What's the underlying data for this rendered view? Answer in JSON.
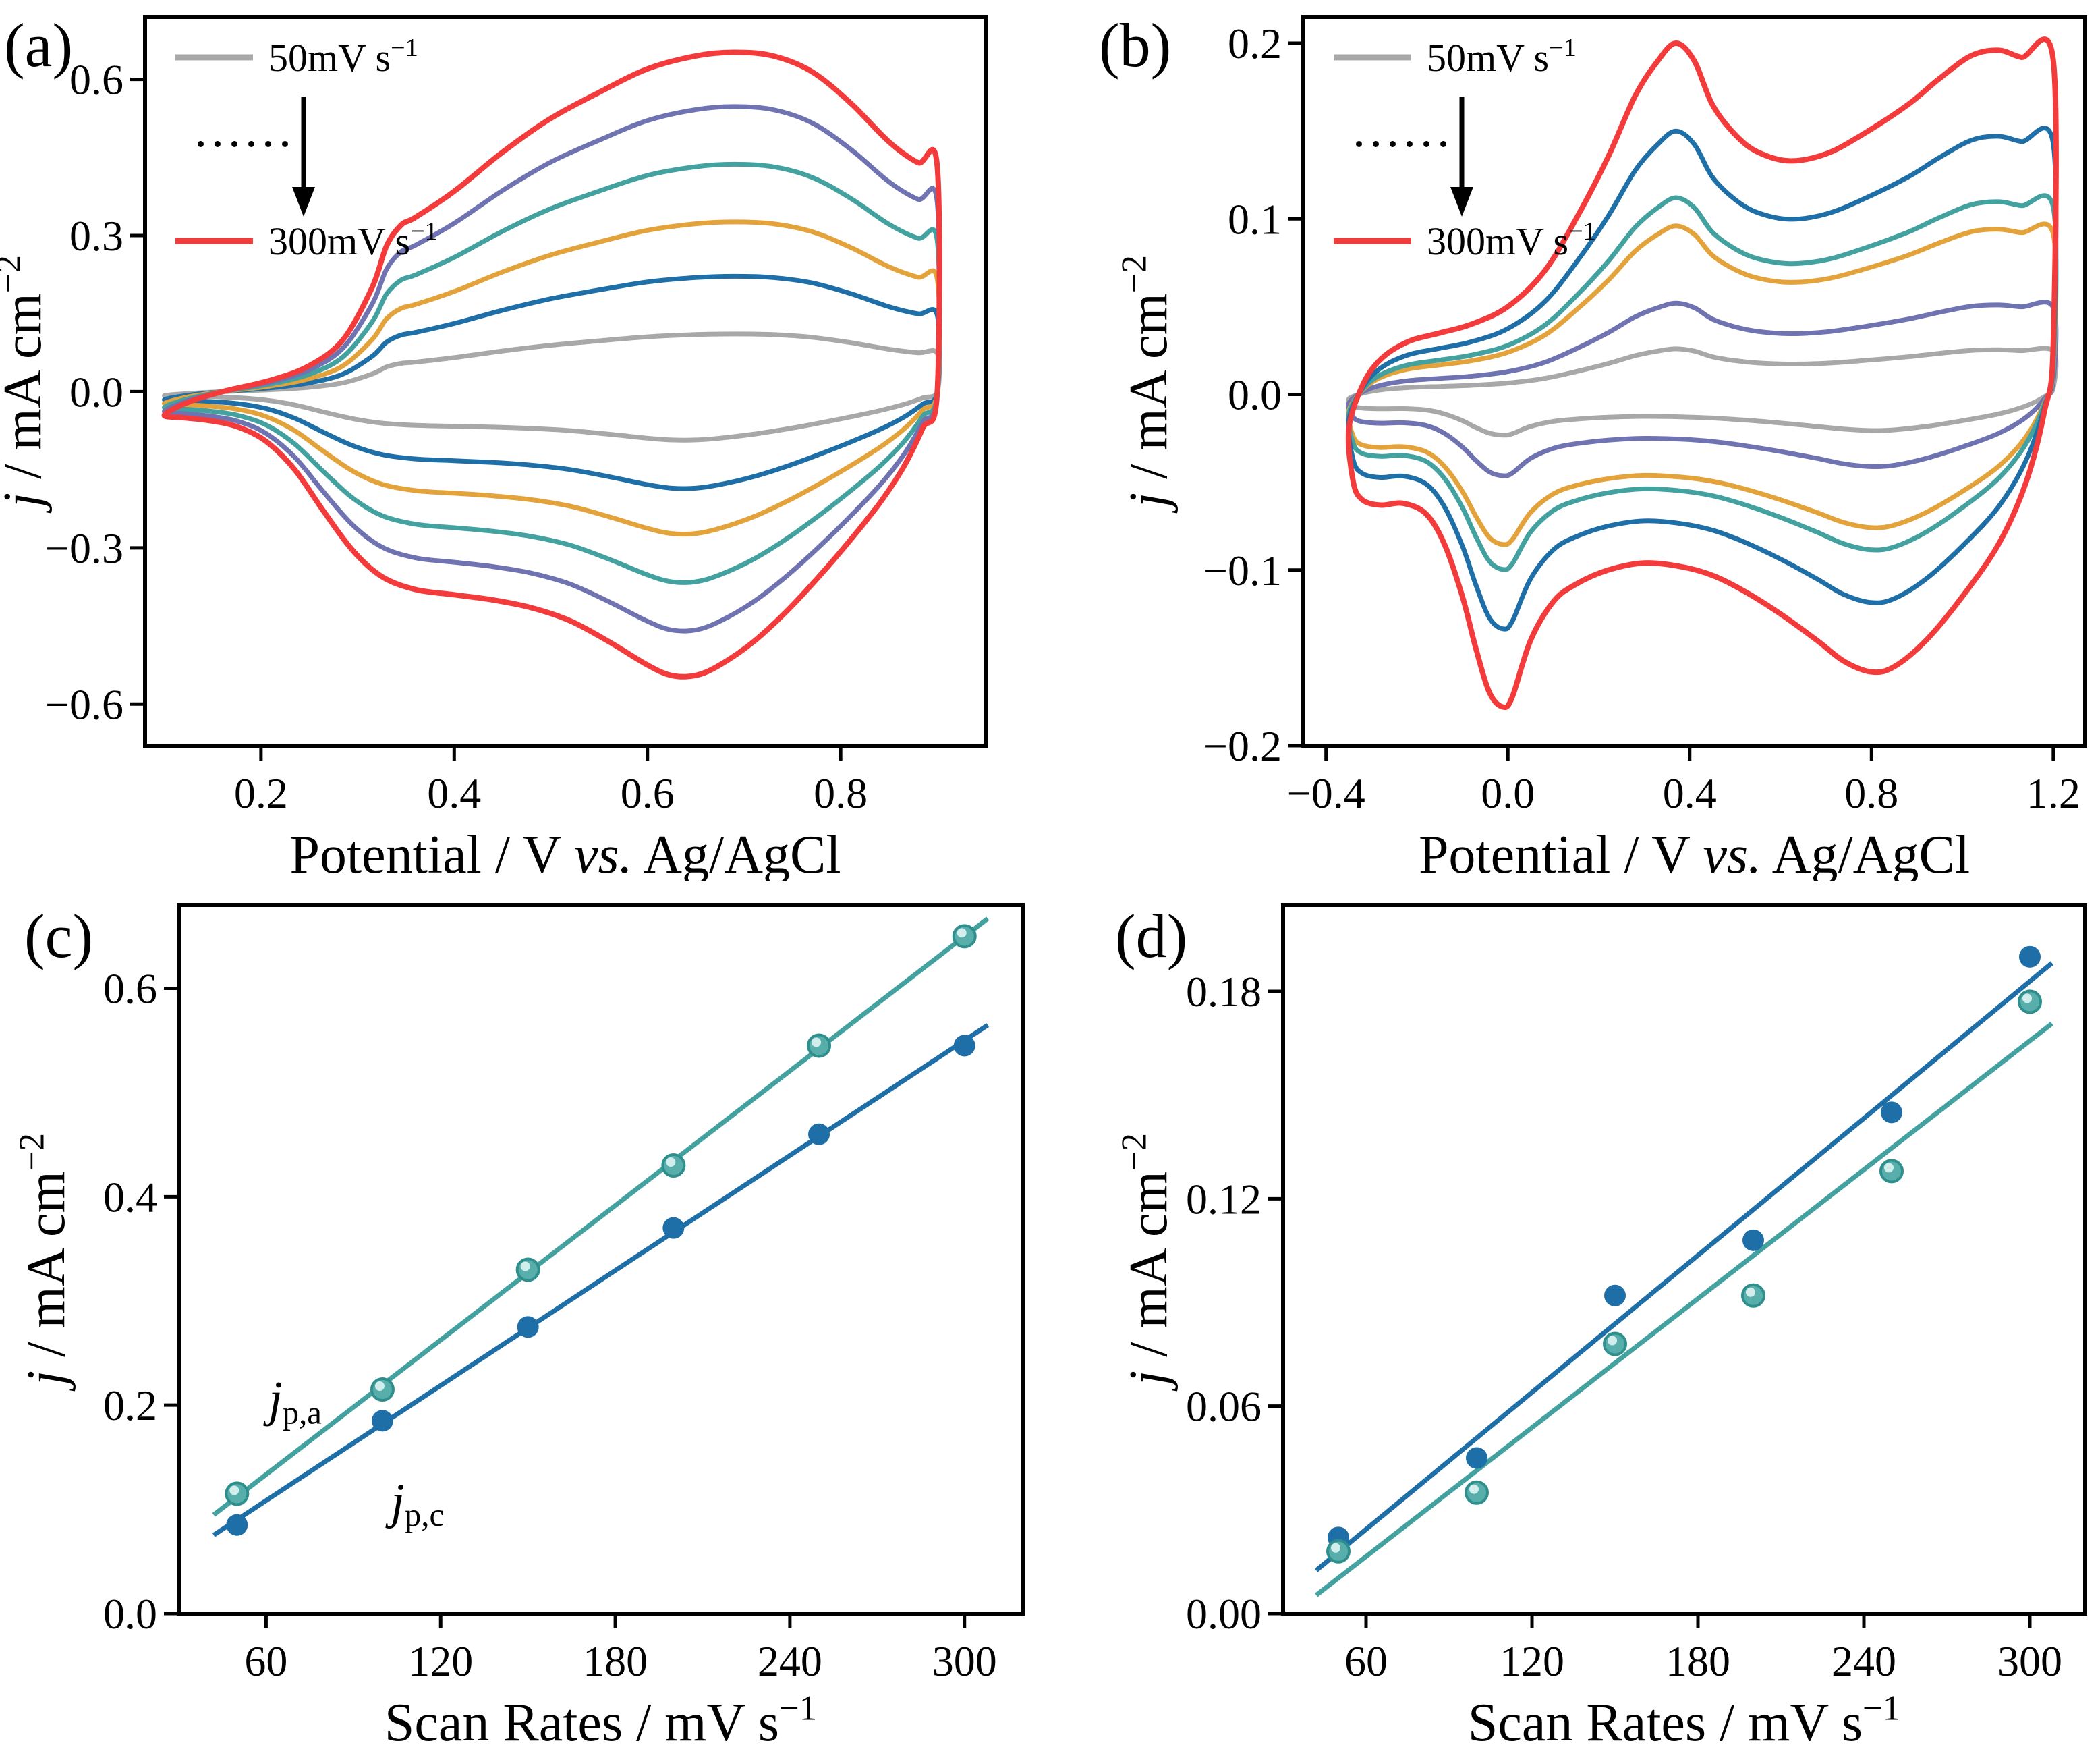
{
  "figure": {
    "background": "#ffffff"
  },
  "colors": {
    "gray": "#a8a8a8",
    "blue": "#1e6ea7",
    "orange": "#e3a23a",
    "teal": "#43a2a0",
    "purple": "#7073b1",
    "red": "#f43b3b",
    "black": "#000000"
  },
  "chart_data": [
    {
      "id": "a",
      "letter": "(a)",
      "type": "cv",
      "xlim": [
        0.08,
        0.95
      ],
      "ylim": [
        -0.68,
        0.72
      ],
      "xticks": [
        {
          "v": 0.2,
          "l": "0.2"
        },
        {
          "v": 0.4,
          "l": "0.4"
        },
        {
          "v": 0.6,
          "l": "0.6"
        },
        {
          "v": 0.8,
          "l": "0.8"
        }
      ],
      "yticks": [
        {
          "v": -0.6,
          "l": "−0.6"
        },
        {
          "v": -0.3,
          "l": "−0.3"
        },
        {
          "v": 0,
          "l": "0.0"
        },
        {
          "v": 0.3,
          "l": "0.3"
        },
        {
          "v": 0.6,
          "l": "0.6"
        }
      ],
      "xlabel": [
        {
          "t": "Potential / V "
        },
        {
          "t": "vs.",
          "i": 1
        },
        {
          "t": " Ag/AgCl"
        }
      ],
      "ylabel": [
        {
          "t": "j",
          "i": 1
        },
        {
          "t": " / mA cm"
        },
        {
          "t": "−2",
          "sup": 1
        }
      ],
      "legend": {
        "first": [
          {
            "t": "50mV s"
          },
          {
            "t": "−1",
            "sup": 1
          }
        ],
        "last": [
          {
            "t": "300mV s"
          },
          {
            "t": "−1",
            "sup": 1
          }
        ],
        "dots": "......",
        "first_color": "#a8a8a8",
        "last_color": "#f43b3b"
      },
      "base_top": [
        [
          0.1,
          -0.045
        ],
        [
          0.125,
          -0.02
        ],
        [
          0.16,
          0.0
        ],
        [
          0.21,
          0.022
        ],
        [
          0.25,
          0.05
        ],
        [
          0.285,
          0.1
        ],
        [
          0.315,
          0.2
        ],
        [
          0.33,
          0.28
        ],
        [
          0.345,
          0.32
        ],
        [
          0.36,
          0.335
        ],
        [
          0.4,
          0.385
        ],
        [
          0.45,
          0.46
        ],
        [
          0.5,
          0.525
        ],
        [
          0.55,
          0.575
        ],
        [
          0.6,
          0.62
        ],
        [
          0.65,
          0.645
        ],
        [
          0.69,
          0.652
        ],
        [
          0.73,
          0.645
        ],
        [
          0.77,
          0.615
        ],
        [
          0.81,
          0.555
        ],
        [
          0.85,
          0.48
        ],
        [
          0.88,
          0.44
        ],
        [
          0.9,
          0.432
        ]
      ],
      "base_bottom": [
        [
          0.9,
          0.0
        ],
        [
          0.885,
          -0.07
        ],
        [
          0.865,
          -0.145
        ],
        [
          0.84,
          -0.215
        ],
        [
          0.81,
          -0.285
        ],
        [
          0.78,
          -0.35
        ],
        [
          0.745,
          -0.42
        ],
        [
          0.71,
          -0.48
        ],
        [
          0.675,
          -0.525
        ],
        [
          0.65,
          -0.545
        ],
        [
          0.625,
          -0.545
        ],
        [
          0.6,
          -0.525
        ],
        [
          0.56,
          -0.48
        ],
        [
          0.52,
          -0.44
        ],
        [
          0.48,
          -0.415
        ],
        [
          0.44,
          -0.4
        ],
        [
          0.4,
          -0.39
        ],
        [
          0.36,
          -0.38
        ],
        [
          0.325,
          -0.355
        ],
        [
          0.295,
          -0.305
        ],
        [
          0.265,
          -0.23
        ],
        [
          0.235,
          -0.15
        ],
        [
          0.205,
          -0.095
        ],
        [
          0.175,
          -0.067
        ],
        [
          0.145,
          -0.055
        ],
        [
          0.12,
          -0.05
        ]
      ],
      "curves": [
        {
          "rate_mV_s": 50,
          "color": "#a8a8a8",
          "scale": 0.17,
          "w": 7
        },
        {
          "rate_mV_s": 100,
          "color": "#1e6ea7",
          "scale": 0.34,
          "w": 7
        },
        {
          "rate_mV_s": 150,
          "color": "#e3a23a",
          "scale": 0.5,
          "w": 7
        },
        {
          "rate_mV_s": 200,
          "color": "#43a2a0",
          "scale": 0.67,
          "w": 7
        },
        {
          "rate_mV_s": 250,
          "color": "#7073b1",
          "scale": 0.84,
          "w": 7
        },
        {
          "rate_mV_s": 300,
          "color": "#f43b3b",
          "scale": 1.0,
          "w": 8
        }
      ]
    },
    {
      "id": "b",
      "letter": "(b)",
      "type": "cv",
      "xlim": [
        -0.45,
        1.27
      ],
      "ylim": [
        -0.2,
        0.215
      ],
      "xticks": [
        {
          "v": -0.4,
          "l": "−0.4"
        },
        {
          "v": 0,
          "l": "0.0"
        },
        {
          "v": 0.4,
          "l": "0.4"
        },
        {
          "v": 0.8,
          "l": "0.8"
        },
        {
          "v": 1.2,
          "l": "1.2"
        }
      ],
      "yticks": [
        {
          "v": -0.2,
          "l": "−0.2"
        },
        {
          "v": -0.1,
          "l": "−0.1"
        },
        {
          "v": 0,
          "l": "0.0"
        },
        {
          "v": 0.1,
          "l": "0.1"
        },
        {
          "v": 0.2,
          "l": "0.2"
        }
      ],
      "xlabel": [
        {
          "t": "Potential / V "
        },
        {
          "t": "vs.",
          "i": 1
        },
        {
          "t": " Ag/AgCl"
        }
      ],
      "ylabel": [
        {
          "t": "j",
          "i": 1
        },
        {
          "t": " / mA cm"
        },
        {
          "t": "−2",
          "sup": 1
        }
      ],
      "legend": {
        "first": [
          {
            "t": "50mV s"
          },
          {
            "t": "−1",
            "sup": 1
          }
        ],
        "last": [
          {
            "t": "300mV s"
          },
          {
            "t": "−1",
            "sup": 1
          }
        ],
        "dots": "......",
        "first_color": "#a8a8a8",
        "last_color": "#f43b3b"
      },
      "base_top": [
        [
          -0.35,
          -0.02
        ],
        [
          -0.32,
          0.005
        ],
        [
          -0.28,
          0.02
        ],
        [
          -0.22,
          0.03
        ],
        [
          -0.15,
          0.035
        ],
        [
          -0.08,
          0.04
        ],
        [
          0.0,
          0.05
        ],
        [
          0.08,
          0.07
        ],
        [
          0.15,
          0.1
        ],
        [
          0.22,
          0.135
        ],
        [
          0.28,
          0.17
        ],
        [
          0.33,
          0.19
        ],
        [
          0.37,
          0.2
        ],
        [
          0.41,
          0.19
        ],
        [
          0.45,
          0.165
        ],
        [
          0.5,
          0.148
        ],
        [
          0.55,
          0.138
        ],
        [
          0.62,
          0.133
        ],
        [
          0.7,
          0.137
        ],
        [
          0.78,
          0.148
        ],
        [
          0.88,
          0.165
        ],
        [
          0.95,
          0.18
        ],
        [
          1.02,
          0.193
        ],
        [
          1.08,
          0.196
        ],
        [
          1.13,
          0.192
        ],
        [
          1.2,
          0.19
        ]
      ],
      "base_bottom": [
        [
          1.2,
          0.03
        ],
        [
          1.18,
          -0.01
        ],
        [
          1.14,
          -0.05
        ],
        [
          1.08,
          -0.085
        ],
        [
          1.0,
          -0.115
        ],
        [
          0.92,
          -0.14
        ],
        [
          0.85,
          -0.155
        ],
        [
          0.8,
          -0.158
        ],
        [
          0.74,
          -0.152
        ],
        [
          0.68,
          -0.14
        ],
        [
          0.6,
          -0.125
        ],
        [
          0.52,
          -0.112
        ],
        [
          0.45,
          -0.103
        ],
        [
          0.38,
          -0.098
        ],
        [
          0.3,
          -0.096
        ],
        [
          0.22,
          -0.1
        ],
        [
          0.15,
          -0.108
        ],
        [
          0.1,
          -0.118
        ],
        [
          0.05,
          -0.14
        ],
        [
          0.01,
          -0.172
        ],
        [
          -0.01,
          -0.178
        ],
        [
          -0.04,
          -0.17
        ],
        [
          -0.07,
          -0.145
        ],
        [
          -0.1,
          -0.115
        ],
        [
          -0.14,
          -0.085
        ],
        [
          -0.18,
          -0.068
        ],
        [
          -0.23,
          -0.062
        ],
        [
          -0.28,
          -0.063
        ],
        [
          -0.32,
          -0.06
        ],
        [
          -0.34,
          -0.05
        ]
      ],
      "curves": [
        {
          "rate_mV_s": 50,
          "color": "#a8a8a8",
          "scale": 0.13,
          "w": 7
        },
        {
          "rate_mV_s": 100,
          "color": "#7073b1",
          "scale": 0.26,
          "w": 7
        },
        {
          "rate_mV_s": 150,
          "color": "#e3a23a",
          "scale": 0.48,
          "w": 7
        },
        {
          "rate_mV_s": 200,
          "color": "#43a2a0",
          "scale": 0.56,
          "w": 7
        },
        {
          "rate_mV_s": 250,
          "color": "#1e6ea7",
          "scale": 0.75,
          "w": 7
        },
        {
          "rate_mV_s": 300,
          "color": "#f43b3b",
          "scale": 1.0,
          "w": 8
        }
      ]
    },
    {
      "id": "c",
      "letter": "(c)",
      "type": "scatter",
      "xlim": [
        30,
        320
      ],
      "ylim": [
        0,
        0.68
      ],
      "xticks": [
        {
          "v": 60,
          "l": "60"
        },
        {
          "v": 120,
          "l": "120"
        },
        {
          "v": 180,
          "l": "180"
        },
        {
          "v": 240,
          "l": "240"
        },
        {
          "v": 300,
          "l": "300"
        }
      ],
      "yticks": [
        {
          "v": 0,
          "l": "0.0"
        },
        {
          "v": 0.2,
          "l": "0.2"
        },
        {
          "v": 0.4,
          "l": "0.4"
        },
        {
          "v": 0.6,
          "l": "0.6"
        }
      ],
      "xlabel": [
        {
          "t": "Scan Rates / mV s"
        },
        {
          "t": "−1",
          "sup": 1
        }
      ],
      "ylabel": [
        {
          "t": "j",
          "i": 1
        },
        {
          "t": " / mA cm"
        },
        {
          "t": "−2",
          "sup": 1
        }
      ],
      "line_x": [
        42,
        308
      ],
      "series": [
        {
          "name": "jpa",
          "label": [
            {
              "t": "j",
              "i": 1
            },
            {
              "t": "p,a",
              "sub": 1
            }
          ],
          "label_at": [
            70,
            0.19
          ],
          "color": "#43a2a0",
          "fill": "#58aeab",
          "ring": "#2f8f8c",
          "marker": "ball",
          "x": [
            50,
            100,
            150,
            200,
            250,
            300
          ],
          "y": [
            0.115,
            0.215,
            0.33,
            0.43,
            0.545,
            0.65
          ]
        },
        {
          "name": "jpc",
          "label": [
            {
              "t": "j",
              "i": 1
            },
            {
              "t": "p,c",
              "sub": 1
            }
          ],
          "label_at": [
            112,
            0.092
          ],
          "color": "#1e6ea7",
          "fill": "#1e6ea7",
          "ring": "none",
          "marker": "solid",
          "x": [
            50,
            100,
            150,
            200,
            250,
            300
          ],
          "y": [
            0.085,
            0.185,
            0.275,
            0.37,
            0.46,
            0.545
          ]
        }
      ]
    },
    {
      "id": "d",
      "letter": "(d)",
      "type": "scatter",
      "xlim": [
        30,
        320
      ],
      "ylim": [
        0,
        0.205
      ],
      "xticks": [
        {
          "v": 60,
          "l": "60"
        },
        {
          "v": 120,
          "l": "120"
        },
        {
          "v": 180,
          "l": "180"
        },
        {
          "v": 240,
          "l": "240"
        },
        {
          "v": 300,
          "l": "300"
        }
      ],
      "yticks": [
        {
          "v": 0,
          "l": "0.00"
        },
        {
          "v": 0.06,
          "l": "0.06"
        },
        {
          "v": 0.12,
          "l": "0.12"
        },
        {
          "v": 0.18,
          "l": "0.18"
        }
      ],
      "xlabel": [
        {
          "t": "Scan Rates / mV s"
        },
        {
          "t": "−1",
          "sup": 1
        }
      ],
      "ylabel": [
        {
          "t": "j",
          "i": 1
        },
        {
          "t": " / mA cm"
        },
        {
          "t": "−2",
          "sup": 1
        }
      ],
      "line_x": [
        42,
        308
      ],
      "series": [
        {
          "name": "anodic-blue",
          "color": "#1e6ea7",
          "fill": "#1e6ea7",
          "ring": "none",
          "marker": "solid",
          "x": [
            50,
            100,
            150,
            200,
            250,
            300
          ],
          "y": [
            0.022,
            0.045,
            0.092,
            0.108,
            0.145,
            0.19
          ]
        },
        {
          "name": "cathodic-teal",
          "color": "#43a2a0",
          "fill": "#58aeab",
          "ring": "#2f8f8c",
          "marker": "ball",
          "x": [
            50,
            100,
            150,
            200,
            250,
            300
          ],
          "y": [
            0.018,
            0.035,
            0.078,
            0.092,
            0.128,
            0.177
          ]
        }
      ]
    }
  ]
}
